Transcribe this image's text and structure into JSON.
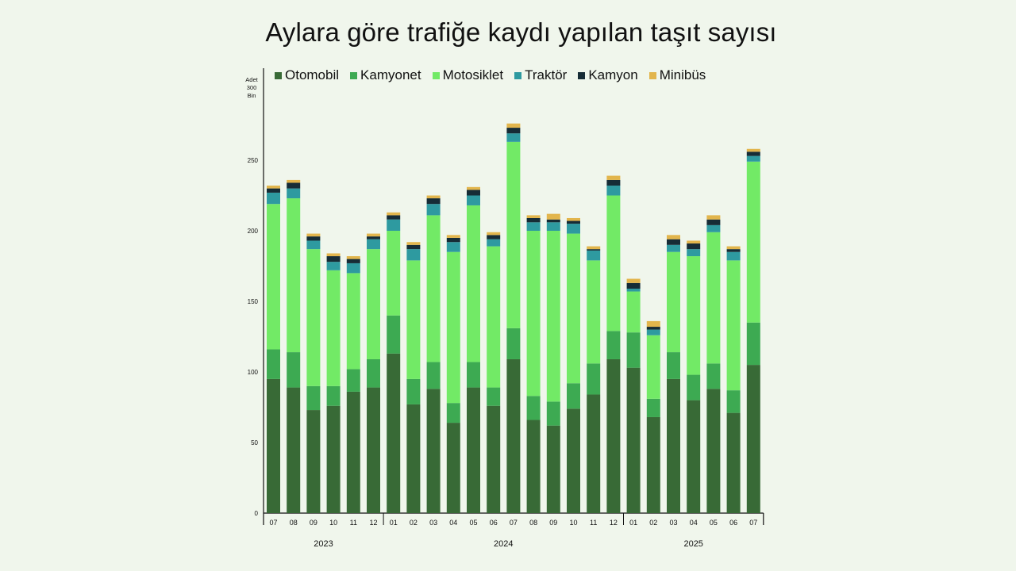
{
  "title": "Aylara göre trafiğe kaydı yapılan taşıt sayısı",
  "unit_label": [
    "Adet",
    "300",
    "Bin"
  ],
  "chart_data": {
    "type": "bar",
    "stacked": true,
    "title": "Aylara göre trafiğe kaydı yapılan taşıt sayısı",
    "ylim": [
      0,
      300
    ],
    "yticks": [
      0,
      50,
      100,
      150,
      200,
      250
    ],
    "legend_position": "top",
    "grid": false,
    "categories": [
      "07",
      "08",
      "09",
      "10",
      "11",
      "12",
      "01",
      "02",
      "03",
      "04",
      "05",
      "06",
      "07",
      "08",
      "09",
      "10",
      "11",
      "12",
      "01",
      "02",
      "03",
      "04",
      "05",
      "06",
      "07"
    ],
    "year_groups": [
      {
        "label": "2023",
        "start": 0,
        "end": 5
      },
      {
        "label": "2024",
        "start": 6,
        "end": 17
      },
      {
        "label": "2025",
        "start": 18,
        "end": 24
      }
    ],
    "series": [
      {
        "name": "Otomobil",
        "color": "#386a36",
        "values": [
          95,
          89,
          73,
          76,
          86,
          89,
          113,
          77,
          88,
          64,
          89,
          76,
          109,
          66,
          62,
          74,
          84,
          109,
          103,
          68,
          95,
          80,
          88,
          71,
          105
        ]
      },
      {
        "name": "Kamyonet",
        "color": "#3daa52",
        "values": [
          21,
          25,
          17,
          14,
          16,
          20,
          27,
          18,
          19,
          14,
          18,
          13,
          22,
          17,
          17,
          18,
          22,
          20,
          25,
          13,
          19,
          18,
          18,
          16,
          30
        ]
      },
      {
        "name": "Motosiklet",
        "color": "#72ea66",
        "values": [
          103,
          109,
          97,
          82,
          68,
          78,
          60,
          84,
          104,
          107,
          111,
          100,
          132,
          117,
          121,
          106,
          73,
          96,
          29,
          45,
          71,
          84,
          93,
          92,
          114
        ]
      },
      {
        "name": "Traktör",
        "color": "#2e9aa0",
        "values": [
          8,
          7,
          6,
          6,
          7,
          7,
          8,
          8,
          8,
          7,
          7,
          5,
          6,
          6,
          6,
          7,
          7,
          7,
          2,
          4,
          5,
          5,
          5,
          6,
          4
        ]
      },
      {
        "name": "Kamyon",
        "color": "#162c36",
        "values": [
          3,
          4,
          3,
          4,
          3,
          2,
          3,
          3,
          4,
          3,
          4,
          3,
          4,
          3,
          2,
          2,
          1,
          4,
          4,
          2,
          4,
          4,
          4,
          2,
          3
        ]
      },
      {
        "name": "Minibüs",
        "color": "#e2b54c",
        "values": [
          2,
          2,
          2,
          2,
          2,
          2,
          2,
          2,
          2,
          2,
          2,
          2,
          3,
          2,
          4,
          2,
          2,
          3,
          3,
          4,
          3,
          2,
          3,
          2,
          2
        ]
      }
    ]
  }
}
